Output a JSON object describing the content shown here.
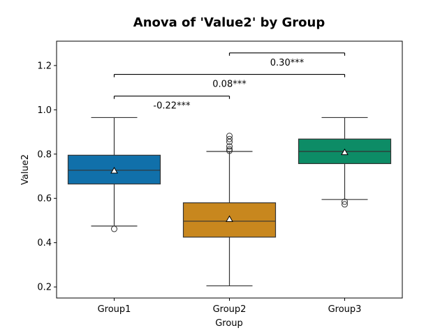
{
  "chart_data": {
    "type": "box",
    "title": "Anova of 'Value2' by Group",
    "xlabel": "Group",
    "ylabel": "Value2",
    "ylim": [
      0.15,
      1.31
    ],
    "yticks": [
      "0.2",
      "0.4",
      "0.6",
      "0.8",
      "1.0",
      "1.2"
    ],
    "grid": false,
    "categories": [
      "Group1",
      "Group2",
      "Group3"
    ],
    "colors": [
      "#1170AA",
      "#C8871E",
      "#0D8C66"
    ],
    "boxes": [
      {
        "group": "Group1",
        "whisker_low": 0.475,
        "q1": 0.665,
        "median": 0.727,
        "q3": 0.795,
        "whisker_high": 0.965,
        "mean": 0.725,
        "outliers": [
          0.462
        ]
      },
      {
        "group": "Group2",
        "whisker_low": 0.205,
        "q1": 0.425,
        "median": 0.497,
        "q3": 0.58,
        "whisker_high": 0.812,
        "mean": 0.506,
        "outliers": [
          0.815,
          0.822,
          0.835,
          0.855,
          0.868,
          0.882
        ]
      },
      {
        "group": "Group3",
        "whisker_low": 0.595,
        "q1": 0.757,
        "median": 0.812,
        "q3": 0.868,
        "whisker_high": 0.965,
        "mean": 0.808,
        "outliers": [
          0.585,
          0.573
        ]
      }
    ],
    "annotations": [
      {
        "from": "Group1",
        "to": "Group2",
        "y": 1.062,
        "label": "-0.22***"
      },
      {
        "from": "Group1",
        "to": "Group3",
        "y": 1.16,
        "label": "0.08***"
      },
      {
        "from": "Group2",
        "to": "Group3",
        "y": 1.257,
        "label": "0.30***"
      }
    ]
  }
}
